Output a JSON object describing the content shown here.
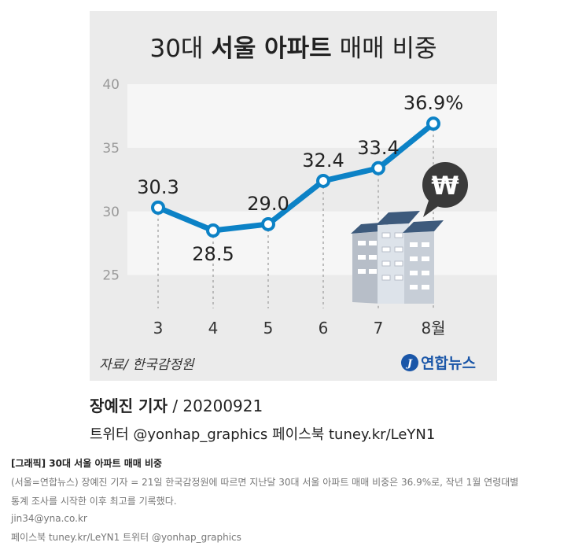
{
  "graphic": {
    "title_prefix": "30대 ",
    "title_bold": "서울 아파트",
    "title_suffix": " 매매 비중",
    "source": "자료/ 한국감정원",
    "logo_text": "연합뉴스",
    "logo_icon": "yonhap-logo-icon",
    "illustration": "apartment-building-with-won-bubble",
    "won_symbol": "₩",
    "colors": {
      "line": "#0c82c6",
      "background": "#ebebeb",
      "band": "#f6f6f6",
      "logo": "#1a56a8"
    }
  },
  "chart_data": {
    "type": "line",
    "title": "30대 서울 아파트 매매 비중",
    "categories": [
      "3",
      "4",
      "5",
      "6",
      "7",
      "8월"
    ],
    "values": [
      30.3,
      28.5,
      29.0,
      32.4,
      33.4,
      36.9
    ],
    "data_labels": [
      "30.3",
      "28.5",
      "29.0",
      "32.4",
      "33.4",
      "36.9%"
    ],
    "y_ticks": [
      "40",
      "35",
      "30",
      "25"
    ],
    "ylim": [
      23,
      40
    ],
    "grid": "alternating horizontal bands",
    "xlabel": "",
    "ylabel": ""
  },
  "byline": {
    "reporter_name": "장예진 기자",
    "reporter_date": " / 20200921",
    "social": "트위터 @yonhap_graphics  페이스북 tuney.kr/LeYN1"
  },
  "caption": {
    "title": "[그래픽] 30대 서울 아파트 매매 비중",
    "body_line1": "(서울=연합뉴스) 장예진 기자 = 21일 한국감정원에 따르면 지난달 30대 서울 아파트 매매 비중은 36.9%로, 작년 1월 연령대별",
    "body_line2": "통계 조사를 시작한 이후 최고를 기록했다.",
    "email": "jin34@yna.co.kr",
    "social": "페이스북 tuney.kr/LeYN1 트위터 @yonhap_graphics"
  }
}
